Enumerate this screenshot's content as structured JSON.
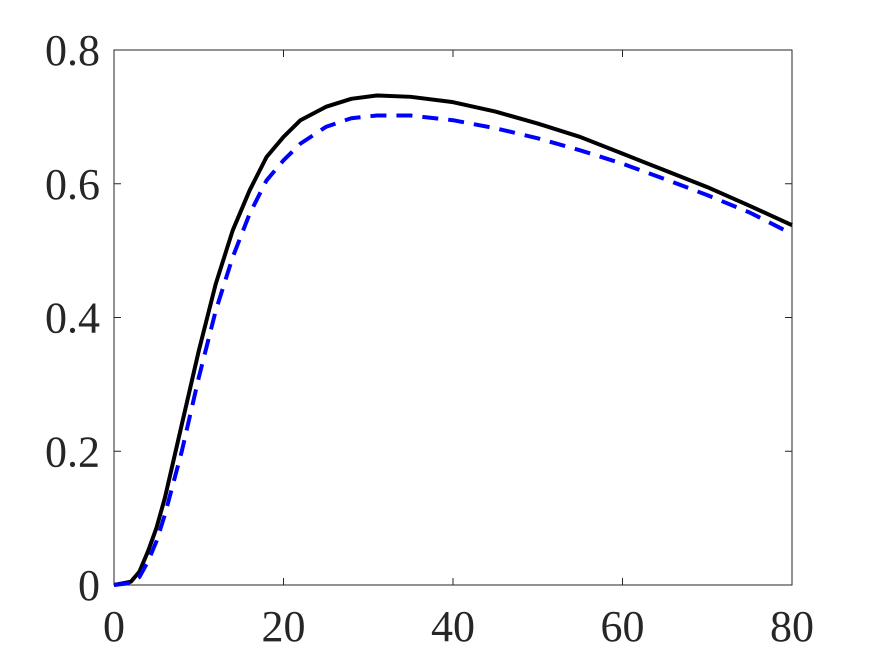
{
  "chart_data": {
    "type": "line",
    "x": [
      0,
      2,
      3,
      4,
      5,
      6,
      8,
      10,
      12,
      14,
      16,
      18,
      20,
      22,
      25,
      28,
      31,
      35,
      40,
      45,
      50,
      55,
      60,
      65,
      70,
      75,
      80
    ],
    "series": [
      {
        "color": "#000000",
        "dash": false,
        "values": [
          0,
          0.005,
          0.02,
          0.05,
          0.085,
          0.13,
          0.24,
          0.35,
          0.45,
          0.53,
          0.59,
          0.64,
          0.67,
          0.695,
          0.715,
          0.727,
          0.732,
          0.73,
          0.722,
          0.708,
          0.69,
          0.67,
          0.645,
          0.62,
          0.595,
          0.567,
          0.538
        ]
      },
      {
        "color": "#0000ff",
        "dash": true,
        "values": [
          0,
          0.003,
          0.012,
          0.035,
          0.065,
          0.105,
          0.2,
          0.31,
          0.41,
          0.49,
          0.555,
          0.605,
          0.635,
          0.66,
          0.685,
          0.698,
          0.702,
          0.702,
          0.695,
          0.683,
          0.668,
          0.65,
          0.63,
          0.607,
          0.583,
          0.557,
          0.525
        ]
      }
    ],
    "xlim": [
      0,
      80
    ],
    "xticks": [
      0,
      20,
      40,
      60,
      80
    ],
    "ylim": [
      0,
      0.8
    ],
    "yticks": [
      0,
      0.2,
      0.4,
      0.6,
      0.8
    ]
  }
}
